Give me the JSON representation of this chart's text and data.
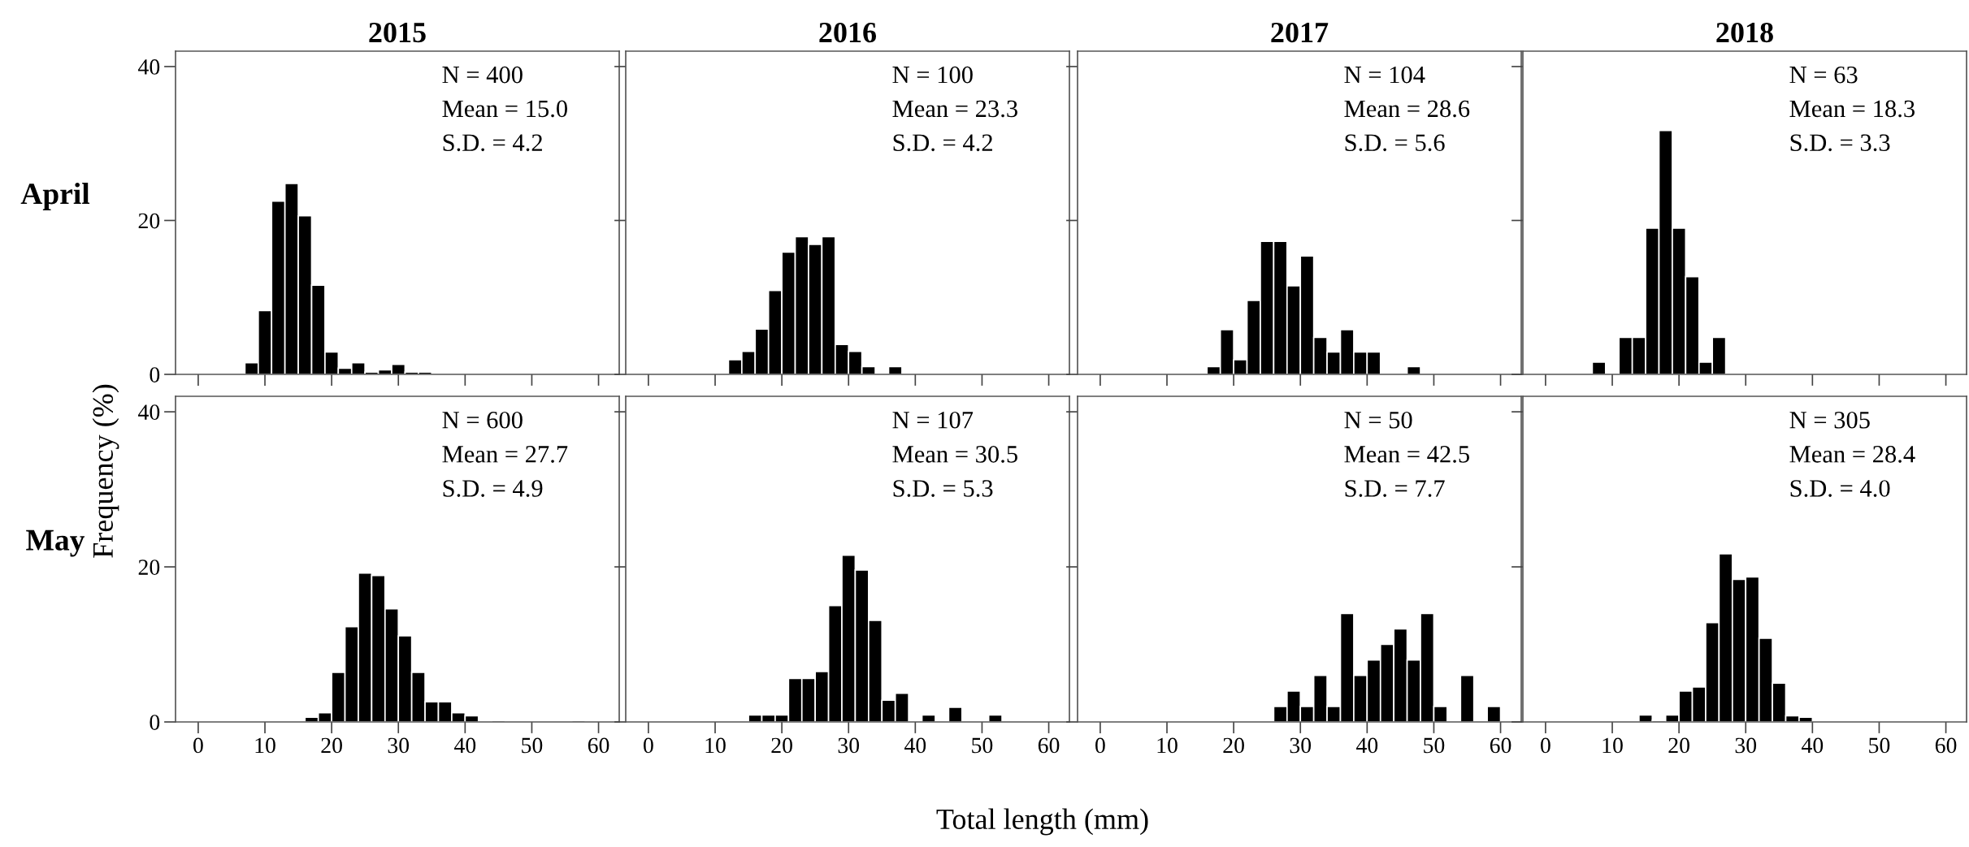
{
  "chart_data": [
    {
      "type": "histogram",
      "title": "2015",
      "ylabel": "Frequency (%)",
      "annotations": [
        "N = 400",
        "Mean = 15.0",
        "S.D. = 4.2",
        "April"
      ],
      "bins": [
        7,
        9,
        11,
        13,
        15,
        17,
        19,
        21,
        23,
        25,
        27,
        29,
        31,
        33,
        35
      ],
      "values": [
        1.5,
        8.3,
        22.5,
        24.8,
        20.6,
        11.6,
        2.9,
        0.8,
        1.5,
        0.3,
        0.6,
        1.3,
        0.3,
        0.3
      ],
      "color": "#000000",
      "xlim": [
        -3.4,
        63.1
      ],
      "xticks": [
        0,
        10,
        20,
        30,
        40,
        50,
        60
      ],
      "ylim": [
        0,
        42
      ],
      "yticks": [
        0,
        20,
        40
      ],
      "tick_labels": "y",
      "grid": false
    },
    {
      "type": "histogram",
      "title": "2016",
      "annotations": [
        "N = 100",
        "Mean = 23.3",
        "S.D. = 4.2"
      ],
      "bins": [
        12,
        14,
        16,
        18,
        20,
        22,
        24,
        26,
        28,
        30,
        32,
        34,
        36,
        38
      ],
      "values": [
        1.9,
        3.0,
        5.9,
        10.9,
        15.9,
        17.9,
        16.9,
        17.9,
        3.9,
        3.0,
        1.0,
        0,
        1.0
      ],
      "color": "#000000",
      "xlim": [
        -3.4,
        63.1
      ],
      "xticks": [
        0,
        10,
        20,
        30,
        40,
        50,
        60
      ],
      "ylim": [
        0,
        42
      ],
      "yticks": [
        0,
        20,
        40
      ],
      "tick_labels": false,
      "grid": false
    },
    {
      "type": "histogram",
      "title": "2017",
      "annotations": [
        "N = 104",
        "Mean = 28.6",
        "S.D. = 5.6"
      ],
      "bins": [
        16,
        18,
        20,
        22,
        24,
        26,
        28,
        30,
        32,
        34,
        36,
        38,
        40,
        42,
        44,
        46,
        48
      ],
      "values": [
        1.0,
        5.8,
        1.9,
        9.6,
        17.3,
        17.3,
        11.5,
        15.4,
        4.8,
        2.9,
        5.8,
        2.9,
        2.9,
        0,
        0,
        1.0
      ],
      "color": "#000000",
      "xlim": [
        -3.4,
        63.1
      ],
      "xticks": [
        0,
        10,
        20,
        30,
        40,
        50,
        60
      ],
      "ylim": [
        0,
        42
      ],
      "yticks": [
        0,
        20,
        40
      ],
      "tick_labels": false,
      "grid": false
    },
    {
      "type": "histogram",
      "title": "2018",
      "annotations": [
        "N = 63",
        "Mean = 18.3",
        "S.D. = 3.3"
      ],
      "bins": [
        7,
        9,
        11,
        13,
        15,
        17,
        19,
        21,
        23,
        25,
        27
      ],
      "values": [
        1.6,
        0,
        4.8,
        4.8,
        19.0,
        31.7,
        19.0,
        12.7,
        1.6,
        4.8
      ],
      "color": "#000000",
      "xlim": [
        -3.4,
        63.1
      ],
      "xticks": [
        0,
        10,
        20,
        30,
        40,
        50,
        60
      ],
      "ylim": [
        0,
        42
      ],
      "yticks": [
        0,
        20,
        40
      ],
      "tick_labels": false,
      "grid": false
    },
    {
      "type": "histogram",
      "annotations": [
        "N = 600",
        "Mean = 27.7",
        "S.D. = 4.9",
        "May"
      ],
      "bins": [
        16,
        18,
        20,
        22,
        24,
        26,
        28,
        30,
        32,
        34,
        36,
        38,
        40,
        42,
        44,
        46,
        48,
        50,
        52,
        54,
        56,
        58
      ],
      "values": [
        0.6,
        1.2,
        6.4,
        12.3,
        19.2,
        18.9,
        14.6,
        11.1,
        6.4,
        2.6,
        2.6,
        1.2,
        0.8,
        0,
        0.2,
        0,
        0,
        0,
        0,
        0,
        0.2
      ],
      "color": "#000000",
      "xlim": [
        -3.4,
        63.1
      ],
      "xticks": [
        0,
        10,
        20,
        30,
        40,
        50,
        60
      ],
      "ylim": [
        0,
        42
      ],
      "yticks": [
        0,
        20,
        40
      ],
      "grid": false
    },
    {
      "type": "histogram",
      "xlabel": "Total length (mm)",
      "annotations": [
        "N = 107",
        "Mean = 30.5",
        "S.D. = 5.3"
      ],
      "bins": [
        15,
        17,
        19,
        21,
        23,
        25,
        27,
        29,
        31,
        33,
        35,
        37,
        39,
        41,
        43,
        45,
        47,
        49,
        51,
        53
      ],
      "values": [
        0.9,
        0.9,
        0.9,
        5.6,
        5.6,
        6.5,
        15.0,
        21.5,
        19.6,
        13.1,
        2.8,
        3.7,
        0,
        0.9,
        0,
        1.9,
        0,
        0,
        0.9
      ],
      "color": "#000000",
      "xlim": [
        -3.4,
        63.1
      ],
      "xticks": [
        0,
        10,
        20,
        30,
        40,
        50,
        60
      ],
      "ylim": [
        0,
        42
      ],
      "yticks": [
        0,
        20,
        40
      ],
      "tick_labels": "x",
      "grid": false
    },
    {
      "type": "histogram",
      "annotations": [
        "N = 50",
        "Mean = 42.5",
        "S.D. = 7.7"
      ],
      "bins": [
        26,
        28,
        30,
        32,
        34,
        36,
        38,
        40,
        42,
        44,
        46,
        48,
        50,
        52,
        54,
        56,
        58,
        60
      ],
      "values": [
        2,
        4,
        2,
        6,
        2,
        14,
        6,
        8,
        10,
        12,
        8,
        14,
        2,
        0,
        6,
        0,
        2
      ],
      "color": "#000000",
      "xlim": [
        -3.4,
        63.1
      ],
      "xticks": [
        0,
        10,
        20,
        30,
        40,
        50,
        60
      ],
      "ylim": [
        0,
        42
      ],
      "yticks": [
        0,
        20,
        40
      ],
      "tick_labels": "x",
      "grid": false
    },
    {
      "type": "histogram",
      "annotations": [
        "N = 305",
        "Mean = 28.4",
        "S.D. = 4.0"
      ],
      "bins": [
        14,
        16,
        18,
        20,
        22,
        24,
        26,
        28,
        30,
        32,
        34,
        36,
        38,
        40
      ],
      "values": [
        0.9,
        0.2,
        0.9,
        4.0,
        4.5,
        12.8,
        21.7,
        18.4,
        18.7,
        10.8,
        5.0,
        0.8,
        0.6
      ],
      "color": "#000000",
      "xlim": [
        -3.4,
        63.1
      ],
      "xticks": [
        0,
        10,
        20,
        30,
        40,
        50,
        60
      ],
      "ylim": [
        0,
        42
      ],
      "yticks": [
        0,
        20,
        40
      ],
      "tick_labels": "x",
      "grid": false
    }
  ]
}
